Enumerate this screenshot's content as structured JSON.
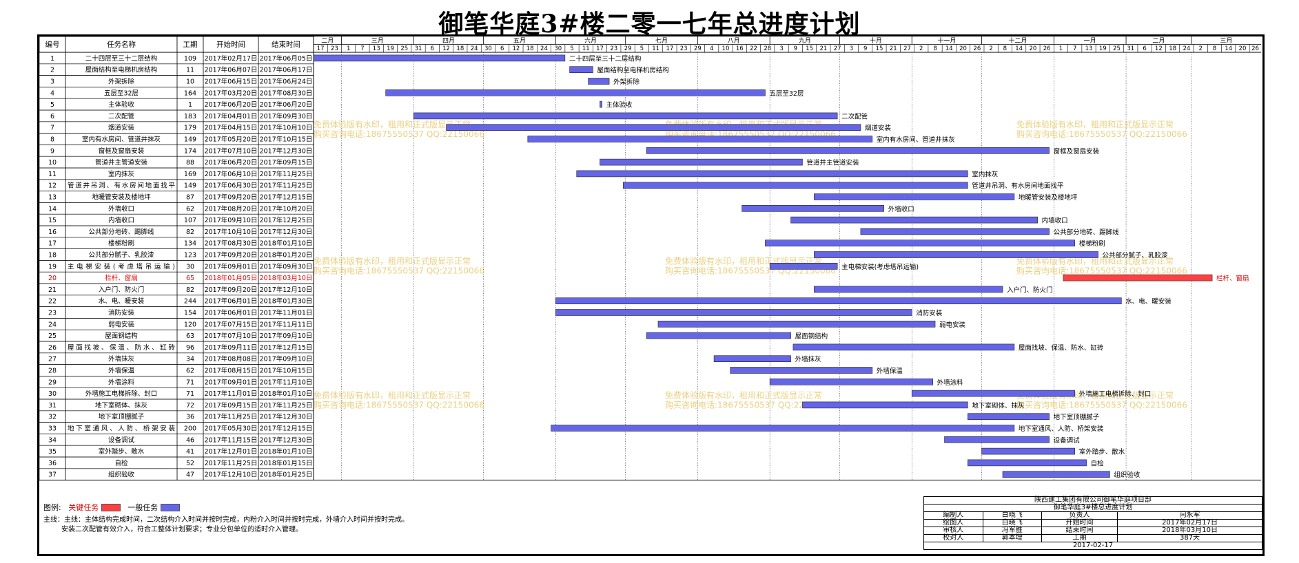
{
  "title": "御笔华庭3#楼二零一七年总进度计划",
  "colors": {
    "critical": "#ff4040",
    "normal": "#6565e8",
    "critical_text": "#e00000",
    "watermark": "#e8c86a"
  },
  "headers": {
    "id": "编号",
    "name": "任务名称",
    "dur": "工期",
    "start": "开始时间",
    "end": "结束时间"
  },
  "watermark": {
    "line1": "免费体验版有水印，租用和正式版显示正常",
    "line2": "购买咨询电话:18675550537 QQ:22150066"
  },
  "legend": {
    "label": "图例:",
    "critical": "关键任务",
    "normal": "一般任务"
  },
  "notes": {
    "line1": "主线：主体结构完成时间，二次结构介入时间并按时完成，内粉介入时间并按时完成，外墙介入时间并按时完成。",
    "line2": "安装二次配管有效介入，符合工整体计划要求；专业分包单位的适时介入管理。"
  },
  "info": {
    "company": "陕西建工集团有限公司御笔华庭项目部",
    "project": "御笔华庭3#楼总进度计划",
    "rows": [
      [
        "编制人",
        "白晓飞",
        "负责人",
        "闫永军"
      ],
      [
        "绘图人",
        "白晓飞",
        "开始时间",
        "2017年02月17日"
      ],
      [
        "审核人",
        "冯军胜",
        "结束时间",
        "2018年03月10日"
      ],
      [
        "校对人",
        "郭本增",
        "工期",
        "387天"
      ]
    ],
    "date": "2017-02-17"
  },
  "chart_data": {
    "type": "gantt",
    "timeline": {
      "start": "2017-02-17",
      "end": "2018-03-31"
    },
    "months": [
      "二月",
      "三月",
      "四月",
      "五月",
      "六月",
      "七月",
      "八月",
      "九月",
      "十月",
      "十一月",
      "十二月",
      "一月",
      "二月",
      "三月"
    ],
    "ticks": [
      {
        "date": "2017-02-17",
        "label": "17"
      },
      {
        "date": "2017-02-23",
        "label": "23"
      },
      {
        "date": "2017-03-01",
        "label": "1"
      },
      {
        "date": "2017-03-07",
        "label": "7"
      },
      {
        "date": "2017-03-13",
        "label": "13"
      },
      {
        "date": "2017-03-19",
        "label": "19"
      },
      {
        "date": "2017-03-25",
        "label": "25"
      },
      {
        "date": "2017-03-31",
        "label": "31"
      },
      {
        "date": "2017-04-06",
        "label": "6"
      },
      {
        "date": "2017-04-12",
        "label": "12"
      },
      {
        "date": "2017-04-18",
        "label": "18"
      },
      {
        "date": "2017-04-24",
        "label": "24"
      },
      {
        "date": "2017-04-30",
        "label": "30"
      },
      {
        "date": "2017-05-06",
        "label": "6"
      },
      {
        "date": "2017-05-12",
        "label": "12"
      },
      {
        "date": "2017-05-18",
        "label": "18"
      },
      {
        "date": "2017-05-24",
        "label": "24"
      },
      {
        "date": "2017-05-30",
        "label": "30"
      },
      {
        "date": "2017-06-05",
        "label": "5"
      },
      {
        "date": "2017-06-11",
        "label": "11"
      },
      {
        "date": "2017-06-17",
        "label": "17"
      },
      {
        "date": "2017-06-23",
        "label": "23"
      },
      {
        "date": "2017-06-29",
        "label": "29"
      },
      {
        "date": "2017-07-05",
        "label": "5"
      },
      {
        "date": "2017-07-11",
        "label": "11"
      },
      {
        "date": "2017-07-17",
        "label": "17"
      },
      {
        "date": "2017-07-23",
        "label": "23"
      },
      {
        "date": "2017-07-29",
        "label": "29"
      },
      {
        "date": "2017-08-04",
        "label": "4"
      },
      {
        "date": "2017-08-10",
        "label": "10"
      },
      {
        "date": "2017-08-16",
        "label": "16"
      },
      {
        "date": "2017-08-22",
        "label": "22"
      },
      {
        "date": "2017-08-28",
        "label": "28"
      },
      {
        "date": "2017-09-03",
        "label": "3"
      },
      {
        "date": "2017-09-09",
        "label": "9"
      },
      {
        "date": "2017-09-15",
        "label": "15"
      },
      {
        "date": "2017-09-21",
        "label": "21"
      },
      {
        "date": "2017-09-27",
        "label": "27"
      },
      {
        "date": "2017-10-03",
        "label": "3"
      },
      {
        "date": "2017-10-09",
        "label": "9"
      },
      {
        "date": "2017-10-15",
        "label": "15"
      },
      {
        "date": "2017-10-21",
        "label": "21"
      },
      {
        "date": "2017-10-27",
        "label": "27"
      },
      {
        "date": "2017-11-02",
        "label": "2"
      },
      {
        "date": "2017-11-08",
        "label": "8"
      },
      {
        "date": "2017-11-14",
        "label": "14"
      },
      {
        "date": "2017-11-20",
        "label": "20"
      },
      {
        "date": "2017-11-26",
        "label": "26"
      },
      {
        "date": "2017-12-02",
        "label": "2"
      },
      {
        "date": "2017-12-08",
        "label": "8"
      },
      {
        "date": "2017-12-14",
        "label": "14"
      },
      {
        "date": "2017-12-20",
        "label": "20"
      },
      {
        "date": "2017-12-26",
        "label": "26"
      },
      {
        "date": "2018-01-01",
        "label": "1"
      },
      {
        "date": "2018-01-07",
        "label": "7"
      },
      {
        "date": "2018-01-13",
        "label": "13"
      },
      {
        "date": "2018-01-19",
        "label": "19"
      },
      {
        "date": "2018-01-25",
        "label": "25"
      },
      {
        "date": "2018-01-31",
        "label": "31"
      },
      {
        "date": "2018-02-06",
        "label": "6"
      },
      {
        "date": "2018-02-12",
        "label": "12"
      },
      {
        "date": "2018-02-18",
        "label": "18"
      },
      {
        "date": "2018-02-24",
        "label": "24"
      },
      {
        "date": "2018-03-02",
        "label": "2"
      },
      {
        "date": "2018-03-08",
        "label": "8"
      },
      {
        "date": "2018-03-14",
        "label": "14"
      },
      {
        "date": "2018-03-20",
        "label": "20"
      },
      {
        "date": "2018-03-26",
        "label": "26"
      }
    ],
    "tasks": [
      {
        "id": 1,
        "name": "二十四层至三十二层结构",
        "dur": 109,
        "start": "2017年02月17日",
        "end": "2017年06月05日",
        "s": "2017-02-17",
        "e": "2017-06-05",
        "critical": false
      },
      {
        "id": 2,
        "name": "屋面结构至电梯机房结构",
        "dur": 11,
        "start": "2017年06月07日",
        "end": "2017年06月17日",
        "s": "2017-06-07",
        "e": "2017-06-17",
        "critical": false
      },
      {
        "id": 3,
        "name": "外架拆除",
        "dur": 10,
        "start": "2017年06月15日",
        "end": "2017年06月24日",
        "s": "2017-06-15",
        "e": "2017-06-24",
        "critical": false
      },
      {
        "id": 4,
        "name": "五层至32层",
        "dur": 164,
        "start": "2017年03月20日",
        "end": "2017年08月30日",
        "s": "2017-03-20",
        "e": "2017-08-30",
        "critical": false
      },
      {
        "id": 5,
        "name": "主体验收",
        "dur": 1,
        "start": "2017年06月20日",
        "end": "2017年06月20日",
        "s": "2017-06-20",
        "e": "2017-06-20",
        "critical": false
      },
      {
        "id": 6,
        "name": "二次配管",
        "dur": 183,
        "start": "2017年04月01日",
        "end": "2017年09月30日",
        "s": "2017-04-01",
        "e": "2017-09-30",
        "critical": false
      },
      {
        "id": 7,
        "name": "烟道安装",
        "dur": 179,
        "start": "2017年04月15日",
        "end": "2017年10月10日",
        "s": "2017-04-15",
        "e": "2017-10-10",
        "critical": false
      },
      {
        "id": 8,
        "name": "室内有水房间、管道井抹灰",
        "dur": 149,
        "start": "2017年05月20日",
        "end": "2017年10月15日",
        "s": "2017-05-20",
        "e": "2017-10-15",
        "critical": false
      },
      {
        "id": 9,
        "name": "窗框及窗扇安装",
        "dur": 174,
        "start": "2017年07月10日",
        "end": "2017年12月30日",
        "s": "2017-07-10",
        "e": "2017-12-30",
        "critical": false
      },
      {
        "id": 10,
        "name": "管道井主管道安装",
        "dur": 88,
        "start": "2017年06月20日",
        "end": "2017年09月15日",
        "s": "2017-06-20",
        "e": "2017-09-15",
        "critical": false
      },
      {
        "id": 11,
        "name": "室内抹灰",
        "dur": 169,
        "start": "2017年06月10日",
        "end": "2017年11月25日",
        "s": "2017-06-10",
        "e": "2017-11-25",
        "critical": false
      },
      {
        "id": 12,
        "name": "管道井吊洞、有水房间地面找平",
        "dur": 149,
        "start": "2017年06月30日",
        "end": "2017年11月25日",
        "s": "2017-06-30",
        "e": "2017-11-25",
        "critical": false
      },
      {
        "id": 13,
        "name": "地暖管安装及楼地坪",
        "dur": 87,
        "start": "2017年09月20日",
        "end": "2017年12月15日",
        "s": "2017-09-20",
        "e": "2017-12-15",
        "critical": false
      },
      {
        "id": 14,
        "name": "外墙收口",
        "dur": 62,
        "start": "2017年08月20日",
        "end": "2017年10月20日",
        "s": "2017-08-20",
        "e": "2017-10-20",
        "critical": false
      },
      {
        "id": 15,
        "name": "内墙收口",
        "dur": 107,
        "start": "2017年09月10日",
        "end": "2017年12月25日",
        "s": "2017-09-10",
        "e": "2017-12-25",
        "critical": false
      },
      {
        "id": 16,
        "name": "公共部分地砖、踢脚线",
        "dur": 82,
        "start": "2017年10月10日",
        "end": "2017年12月30日",
        "s": "2017-10-10",
        "e": "2017-12-30",
        "critical": false
      },
      {
        "id": 17,
        "name": "楼梯粉刷",
        "dur": 134,
        "start": "2017年08月30日",
        "end": "2018年01月10日",
        "s": "2017-08-30",
        "e": "2018-01-10",
        "critical": false
      },
      {
        "id": 18,
        "name": "公共部分腻子、乳胶漆",
        "dur": 123,
        "start": "2017年09月20日",
        "end": "2018年01月20日",
        "s": "2017-09-20",
        "e": "2018-01-20",
        "critical": false
      },
      {
        "id": 19,
        "name": "主电梯安装(考虑塔吊运输)",
        "dur": 30,
        "start": "2017年09月01日",
        "end": "2017年09月30日",
        "s": "2017-09-01",
        "e": "2017-09-30",
        "critical": false
      },
      {
        "id": 20,
        "name": "栏杆、窗扇",
        "dur": 65,
        "start": "2018年01月05日",
        "end": "2018年03月10日",
        "s": "2018-01-05",
        "e": "2018-03-10",
        "critical": true
      },
      {
        "id": 21,
        "name": "入户门、防火门",
        "dur": 82,
        "start": "2017年09月20日",
        "end": "2017年12月10日",
        "s": "2017-09-20",
        "e": "2017-12-10",
        "critical": false
      },
      {
        "id": 22,
        "name": "水、电、暖安装",
        "dur": 244,
        "start": "2017年06月01日",
        "end": "2018年01月30日",
        "s": "2017-06-01",
        "e": "2018-01-30",
        "critical": false
      },
      {
        "id": 23,
        "name": "消防安装",
        "dur": 154,
        "start": "2017年06月01日",
        "end": "2017年11月01日",
        "s": "2017-06-01",
        "e": "2017-11-01",
        "critical": false
      },
      {
        "id": 24,
        "name": "弱电安装",
        "dur": 120,
        "start": "2017年07月15日",
        "end": "2017年11月11日",
        "s": "2017-07-15",
        "e": "2017-11-11",
        "critical": false
      },
      {
        "id": 25,
        "name": "屋面钢结构",
        "dur": 63,
        "start": "2017年07月10日",
        "end": "2017年09月10日",
        "s": "2017-07-10",
        "e": "2017-09-10",
        "critical": false
      },
      {
        "id": 26,
        "name": "屋面找坡、保温、防水、缸砖",
        "dur": 96,
        "start": "2017年09月11日",
        "end": "2017年12月15日",
        "s": "2017-09-11",
        "e": "2017-12-15",
        "critical": false
      },
      {
        "id": 27,
        "name": "外墙抹灰",
        "dur": 34,
        "start": "2017年08月08日",
        "end": "2017年09月10日",
        "s": "2017-08-08",
        "e": "2017-09-10",
        "critical": false
      },
      {
        "id": 28,
        "name": "外墙保温",
        "dur": 62,
        "start": "2017年08月15日",
        "end": "2017年10月15日",
        "s": "2017-08-15",
        "e": "2017-10-15",
        "critical": false
      },
      {
        "id": 29,
        "name": "外墙涂料",
        "dur": 71,
        "start": "2017年09月01日",
        "end": "2017年11月10日",
        "s": "2017-09-01",
        "e": "2017-11-10",
        "critical": false
      },
      {
        "id": 30,
        "name": "外墙施工电梯拆除、封口",
        "dur": 71,
        "start": "2017年11月01日",
        "end": "2018年01月10日",
        "s": "2017-11-01",
        "e": "2018-01-10",
        "critical": false
      },
      {
        "id": 31,
        "name": "地下室砌体、抹灰",
        "dur": 72,
        "start": "2017年09月15日",
        "end": "2017年11月25日",
        "s": "2017-09-15",
        "e": "2017-11-25",
        "critical": false
      },
      {
        "id": 32,
        "name": "地下室顶棚腻子",
        "dur": 36,
        "start": "2017年11月25日",
        "end": "2017年12月30日",
        "s": "2017-11-25",
        "e": "2017-12-30",
        "critical": false
      },
      {
        "id": 33,
        "name": "地下室通风、人防、桥架安装",
        "dur": 200,
        "start": "2017年05月30日",
        "end": "2017年12月15日",
        "s": "2017-05-30",
        "e": "2017-12-15",
        "critical": false
      },
      {
        "id": 34,
        "name": "设备调试",
        "dur": 46,
        "start": "2017年11月15日",
        "end": "2017年12月30日",
        "s": "2017-11-15",
        "e": "2017-12-30",
        "critical": false
      },
      {
        "id": 35,
        "name": "室外踏步、散水",
        "dur": 41,
        "start": "2017年12月01日",
        "end": "2018年01月10日",
        "s": "2017-12-01",
        "e": "2018-01-10",
        "critical": false
      },
      {
        "id": 36,
        "name": "自检",
        "dur": 52,
        "start": "2017年11月25日",
        "end": "2018年01月15日",
        "s": "2017-11-25",
        "e": "2018-01-15",
        "critical": false
      },
      {
        "id": 37,
        "name": "组织验收",
        "dur": 47,
        "start": "2017年12月10日",
        "end": "2018年01月25日",
        "s": "2017-12-10",
        "e": "2018-01-25",
        "critical": false
      }
    ]
  }
}
